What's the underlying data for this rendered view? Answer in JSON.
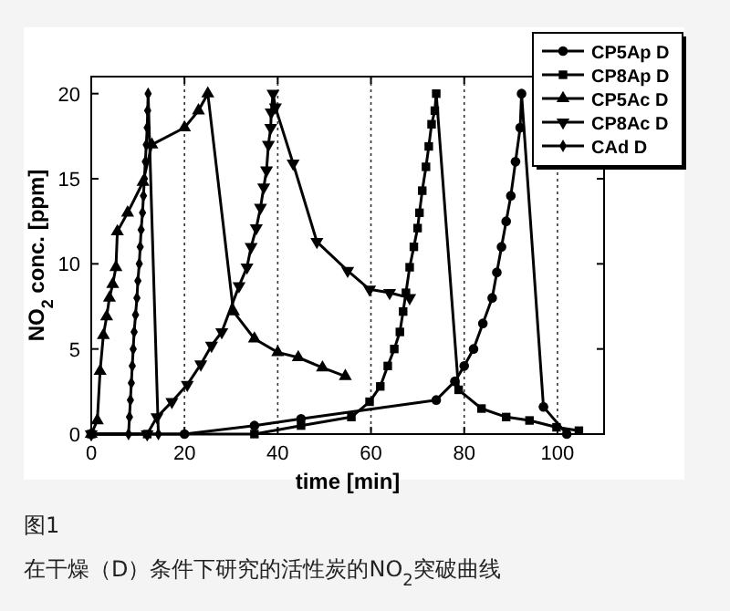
{
  "chart_data": {
    "type": "line",
    "xlabel": "time [min]",
    "ylabel": "NO$_{2}$ conc. [ppm]",
    "xlim": [
      0,
      110
    ],
    "ylim": [
      0,
      21
    ],
    "xticks": [
      0,
      20,
      40,
      60,
      80,
      100
    ],
    "yticks": [
      0,
      5,
      10,
      15,
      20
    ],
    "grid": "x",
    "legend": "top right",
    "line_style": "solid",
    "annotations": [
      "图1",
      "在干燥（D）条件下研究的活性炭的NO$_{2}$突破曲线"
    ],
    "series": [
      {
        "name": "CP5Ap D",
        "color": "#000000",
        "marker": "circle",
        "x": [
          0,
          20,
          35,
          45,
          74,
          78,
          80,
          82,
          84,
          86,
          87,
          88,
          89,
          90,
          91,
          92,
          92.3,
          97,
          102
        ],
        "values": [
          0,
          0,
          0.5,
          0.9,
          2,
          3.1,
          4,
          5,
          6.5,
          8,
          9.5,
          11,
          12.5,
          14,
          16,
          18,
          20,
          1.6,
          0
        ]
      },
      {
        "name": "CP8Ap D",
        "color": "#000000",
        "marker": "square",
        "x": [
          0,
          12,
          35,
          45,
          55.8,
          59.7,
          62,
          63.6,
          65,
          66.2,
          66.9,
          67.5,
          68.3,
          69.2,
          70,
          70.4,
          71,
          71.8,
          72.4,
          73,
          73.7,
          74,
          78.8,
          83.7,
          89,
          94,
          99.8,
          104.6
        ],
        "values": [
          0,
          0,
          0,
          0.5,
          1,
          1.9,
          2.8,
          4,
          5,
          6,
          7.2,
          8.3,
          9.8,
          11,
          12.1,
          13,
          14.3,
          15.7,
          16.9,
          18.2,
          19,
          20,
          2.6,
          1.5,
          1,
          0.8,
          0.4,
          0.2
        ]
      },
      {
        "name": "CP5Ac D",
        "color": "#000000",
        "marker": "triangle",
        "x": [
          0,
          1.3,
          1.9,
          2.6,
          3.3,
          3.9,
          4.6,
          5.3,
          5.6,
          7.8,
          11.1,
          13,
          20,
          23,
          25,
          30.5,
          35,
          40,
          44.4,
          49.6,
          54.5
        ],
        "values": [
          0,
          0.8,
          3.7,
          5.8,
          6.9,
          8,
          8.8,
          9.8,
          11.9,
          13,
          14.8,
          17,
          18,
          19,
          20,
          7.2,
          5.6,
          4.8,
          4.5,
          3.9,
          3.4
        ]
      },
      {
        "name": "CP8Ac D",
        "color": "#000000",
        "marker": "triangle-down",
        "x": [
          0,
          12,
          14.1,
          17.3,
          20.6,
          23.5,
          25.8,
          28,
          31.7,
          33.4,
          34.3,
          35.4,
          36.3,
          37,
          37.6,
          38,
          38.5,
          38.6,
          39,
          39.5,
          43.3,
          48.4,
          55,
          59.7,
          64,
          68.3
        ],
        "values": [
          0,
          0,
          1,
          1.9,
          2.9,
          4.1,
          5.2,
          6,
          8.7,
          9.8,
          11,
          12.1,
          13.3,
          14.5,
          15.5,
          17,
          18,
          18.9,
          20,
          19.2,
          15.9,
          11.3,
          9.6,
          8.5,
          8.3,
          8
        ]
      },
      {
        "name": "CAd D",
        "color": "#000000",
        "marker": "diamond",
        "x": [
          0,
          8,
          8.2,
          8.4,
          8.6,
          8.8,
          9,
          9.2,
          9.5,
          9.8,
          10,
          10.3,
          10.5,
          10.7,
          11,
          11.2,
          11.4,
          11.6,
          11.8,
          12,
          12.1,
          12.2,
          14.4
        ],
        "values": [
          0,
          0,
          1,
          2,
          3,
          4,
          5,
          6,
          7,
          8,
          9,
          10,
          11,
          12,
          13,
          14,
          15,
          16,
          17,
          18,
          19,
          20,
          0
        ]
      }
    ]
  }
}
